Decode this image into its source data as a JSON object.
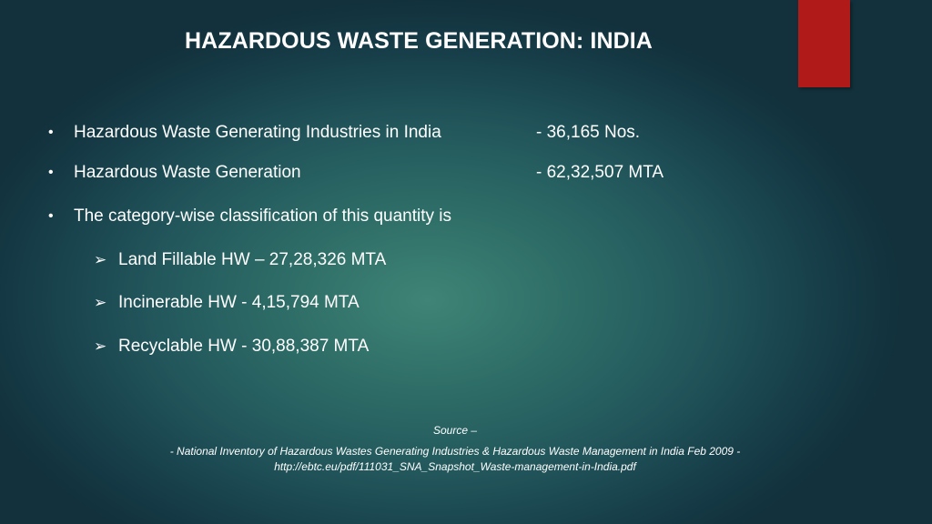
{
  "slide": {
    "title": "HAZARDOUS WASTE GENERATION: INDIA",
    "bullets": [
      {
        "marker": "•",
        "label": "Hazardous Waste Generating Industries in India",
        "value": "- 36,165 Nos."
      },
      {
        "marker": "•",
        "label": "Hazardous Waste Generation",
        "value": "- 62,32,507 MTA"
      },
      {
        "marker": "•",
        "label": "The category-wise classification of this quantity is",
        "value": ""
      }
    ],
    "sub_items": [
      {
        "marker": "➢",
        "label": "Land Fillable HW – 27,28,326 MTA"
      },
      {
        "marker": "➢",
        "label": "Incinerable HW - 4,15,794 MTA"
      },
      {
        "marker": "➢",
        "label": "Recyclable HW - 30,88,387 MTA"
      }
    ],
    "source": {
      "heading": "Source –",
      "line1": "- National Inventory of Hazardous Wastes Generating Industries & Hazardous Waste Management in India Feb 2009 -",
      "line2": "http://ebtc.eu/pdf/111031_SNA_Snapshot_Waste-management-in-India.pdf"
    }
  },
  "colors": {
    "accent": "#b01b19",
    "text": "#ffffff",
    "background_center": "#3f8476",
    "background_edge": "#12313c"
  }
}
